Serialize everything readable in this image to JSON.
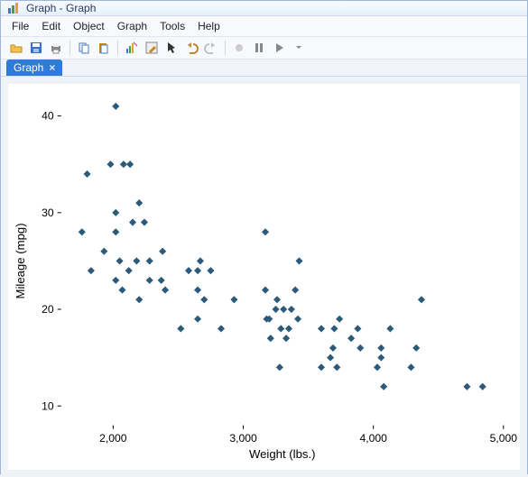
{
  "window": {
    "title": "Graph - Graph"
  },
  "menu": {
    "file": "File",
    "edit": "Edit",
    "object": "Object",
    "graph": "Graph",
    "tools": "Tools",
    "help": "Help"
  },
  "tab": {
    "label": "Graph",
    "close": "×"
  },
  "chart": {
    "type": "scatter",
    "xlabel": "Weight (lbs.)",
    "ylabel": "Mileage (mpg)",
    "xlim": [
      1600,
      5000
    ],
    "ylim": [
      8,
      42
    ],
    "xticks": [
      2000,
      3000,
      4000,
      5000
    ],
    "yticks": [
      10,
      20,
      30,
      40
    ],
    "xtick_labels": [
      "2,000",
      "3,000",
      "4,000",
      "5,000"
    ],
    "ytick_labels": [
      "10",
      "20",
      "30",
      "40"
    ],
    "marker_color": "#2c5a7a",
    "marker_size": 4,
    "background_color": "#ffffff",
    "plot_background": "#ffffff",
    "tick_color": "#000000",
    "label_fontsize": 13,
    "tick_fontsize": 12,
    "points": [
      [
        1760,
        28
      ],
      [
        1800,
        34
      ],
      [
        1830,
        24
      ],
      [
        1930,
        26
      ],
      [
        1980,
        35
      ],
      [
        2020,
        30
      ],
      [
        2020,
        41
      ],
      [
        2020,
        23
      ],
      [
        2020,
        28
      ],
      [
        2050,
        25
      ],
      [
        2070,
        22
      ],
      [
        2080,
        35
      ],
      [
        2120,
        24
      ],
      [
        2130,
        35
      ],
      [
        2150,
        29
      ],
      [
        2180,
        25
      ],
      [
        2200,
        31
      ],
      [
        2200,
        21
      ],
      [
        2240,
        29
      ],
      [
        2280,
        23
      ],
      [
        2280,
        25
      ],
      [
        2370,
        23
      ],
      [
        2380,
        26
      ],
      [
        2400,
        22
      ],
      [
        2520,
        18
      ],
      [
        2580,
        24
      ],
      [
        2650,
        19
      ],
      [
        2650,
        24
      ],
      [
        2650,
        22
      ],
      [
        2670,
        25
      ],
      [
        2700,
        21
      ],
      [
        2750,
        24
      ],
      [
        2830,
        18
      ],
      [
        2930,
        21
      ],
      [
        3170,
        22
      ],
      [
        3170,
        28
      ],
      [
        3180,
        19
      ],
      [
        3200,
        19
      ],
      [
        3210,
        17
      ],
      [
        3250,
        20
      ],
      [
        3260,
        21
      ],
      [
        3280,
        14
      ],
      [
        3290,
        18
      ],
      [
        3310,
        20
      ],
      [
        3330,
        17
      ],
      [
        3350,
        18
      ],
      [
        3370,
        20
      ],
      [
        3400,
        22
      ],
      [
        3420,
        19
      ],
      [
        3430,
        25
      ],
      [
        3600,
        18
      ],
      [
        3600,
        14
      ],
      [
        3670,
        15
      ],
      [
        3690,
        16
      ],
      [
        3700,
        18
      ],
      [
        3720,
        14
      ],
      [
        3740,
        19
      ],
      [
        3830,
        17
      ],
      [
        3880,
        18
      ],
      [
        3900,
        16
      ],
      [
        4030,
        14
      ],
      [
        4060,
        15
      ],
      [
        4060,
        16
      ],
      [
        4080,
        12
      ],
      [
        4130,
        18
      ],
      [
        4290,
        14
      ],
      [
        4330,
        16
      ],
      [
        4370,
        21
      ],
      [
        4720,
        12
      ],
      [
        4840,
        12
      ]
    ]
  }
}
